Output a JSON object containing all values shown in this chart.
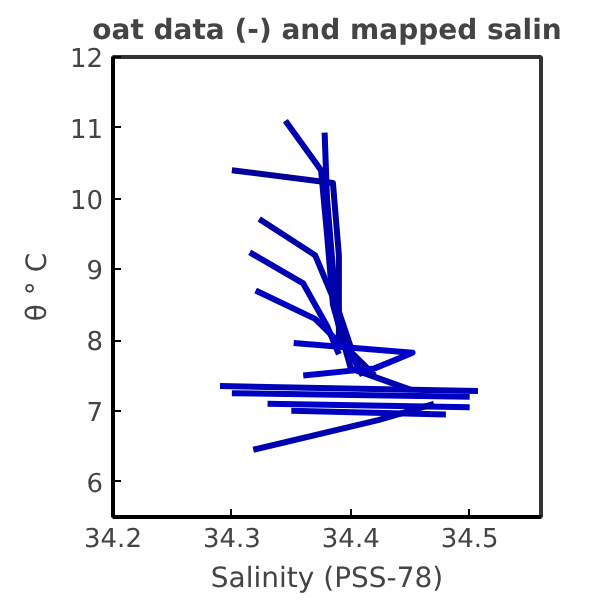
{
  "chart_data": {
    "type": "line",
    "title": "oat data (-) and mapped salin",
    "xlabel": "Salinity (PSS-78)",
    "ylabel": "θ ° C",
    "xlim": [
      34.2,
      34.56
    ],
    "ylim": [
      5.5,
      12
    ],
    "xticks": [
      34.2,
      34.3,
      34.4,
      34.5
    ],
    "yticks": [
      6,
      7,
      8,
      9,
      10,
      11,
      12
    ],
    "line_style": "solid",
    "series": [
      {
        "color": "#0000b0",
        "x": [
          34.345,
          34.375,
          34.38,
          34.385,
          34.4,
          34.45
        ],
        "values": [
          11.1,
          10.4,
          9.5,
          8.5,
          7.6,
          7.3
        ]
      },
      {
        "color": "#00009a",
        "x": [
          34.3,
          34.385,
          34.39,
          34.39,
          34.42
        ],
        "values": [
          10.4,
          10.22,
          9.2,
          8.0,
          7.5
        ]
      },
      {
        "color": "#0000b0",
        "x": [
          34.378,
          34.38,
          34.385,
          34.39
        ],
        "values": [
          10.93,
          10.0,
          9.0,
          8.2
        ]
      },
      {
        "color": "#0000a8",
        "x": [
          34.323,
          34.37,
          34.39,
          34.4
        ],
        "values": [
          9.71,
          9.2,
          8.4,
          7.9
        ]
      },
      {
        "color": "#0000b8",
        "x": [
          34.315,
          34.36,
          34.38,
          34.39
        ],
        "values": [
          9.24,
          8.8,
          8.2,
          7.8
        ]
      },
      {
        "color": "#0000c0",
        "x": [
          34.32,
          34.37,
          34.4,
          34.41
        ],
        "values": [
          8.7,
          8.3,
          7.8,
          7.5
        ]
      },
      {
        "color": "#0000c8",
        "x": [
          34.352,
          34.452,
          34.42,
          34.36
        ],
        "values": [
          7.96,
          7.82,
          7.6,
          7.5
        ]
      },
      {
        "color": "#0000b8",
        "x": [
          34.29,
          34.507
        ],
        "values": [
          7.35,
          7.28
        ]
      },
      {
        "color": "#0000c0",
        "x": [
          34.3,
          34.5
        ],
        "values": [
          7.25,
          7.2
        ]
      },
      {
        "color": "#0000c8",
        "x": [
          34.33,
          34.5
        ],
        "values": [
          7.1,
          7.05
        ]
      },
      {
        "color": "#0000c0",
        "x": [
          34.35,
          34.48
        ],
        "values": [
          7.0,
          6.95
        ]
      },
      {
        "color": "#0000b0",
        "x": [
          34.318,
          34.423,
          34.47
        ],
        "values": [
          6.45,
          6.87,
          7.1
        ]
      }
    ]
  }
}
